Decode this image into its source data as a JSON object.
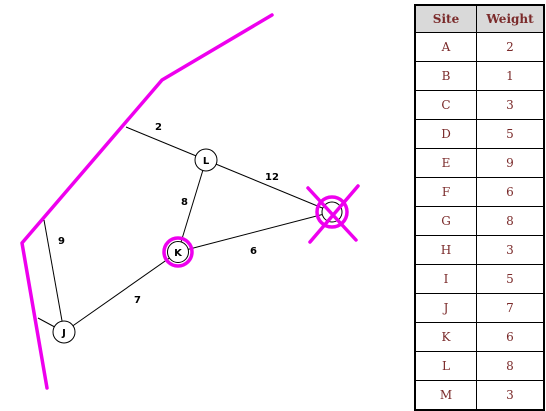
{
  "graph": {
    "nodes": [
      "L",
      "K",
      "J",
      ""
    ],
    "edges": [
      {
        "from": "boundary",
        "to": "L",
        "weight": "2"
      },
      {
        "from": "L",
        "to": "unnamed-node",
        "weight": "12"
      },
      {
        "from": "L",
        "to": "K",
        "weight": "8"
      },
      {
        "from": "K",
        "to": "unnamed-node",
        "weight": "6"
      },
      {
        "from": "boundary",
        "to": "J",
        "weight": "9"
      },
      {
        "from": "J",
        "to": "K",
        "weight": "7"
      }
    ],
    "highlighted_node": "K",
    "crossed_node": "unnamed-node",
    "highlight_color": "#ee00ee"
  },
  "table": {
    "headers": [
      "Site",
      "Weight"
    ],
    "rows": [
      [
        "A",
        "2"
      ],
      [
        "B",
        "1"
      ],
      [
        "C",
        "3"
      ],
      [
        "D",
        "5"
      ],
      [
        "E",
        "9"
      ],
      [
        "F",
        "6"
      ],
      [
        "G",
        "8"
      ],
      [
        "H",
        "3"
      ],
      [
        "I",
        "5"
      ],
      [
        "J",
        "7"
      ],
      [
        "K",
        "6"
      ],
      [
        "L",
        "8"
      ],
      [
        "M",
        "3"
      ]
    ],
    "header_bg": "#d9d9d9",
    "text_color": "#7a2a2a"
  }
}
